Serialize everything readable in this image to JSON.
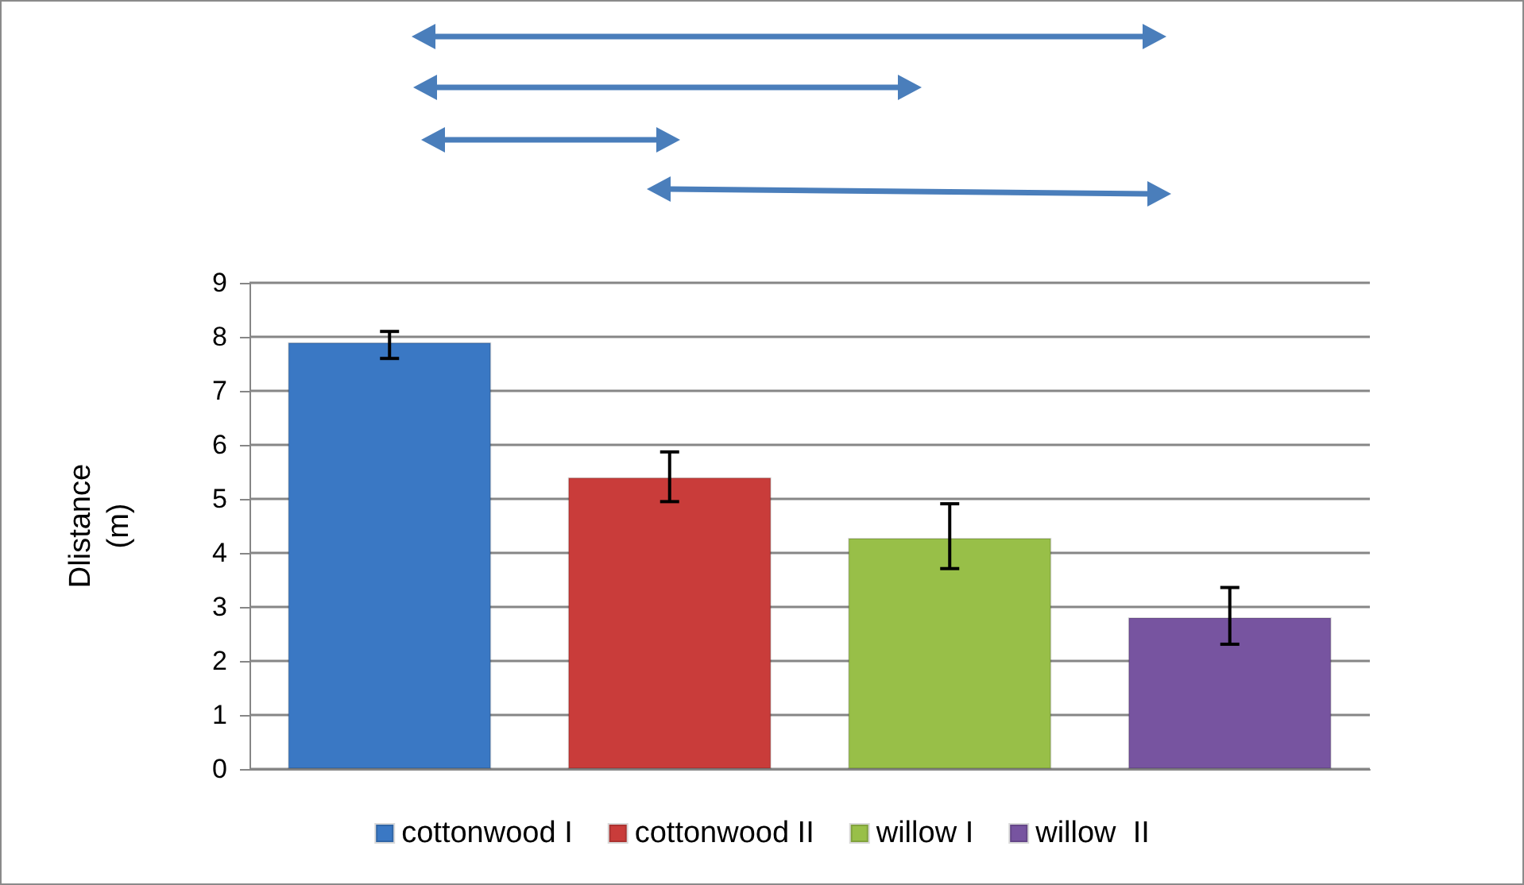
{
  "chart_data": {
    "type": "bar",
    "ylabel": "Dlistance\n(m)",
    "categories": [
      null,
      null,
      null,
      null
    ],
    "series": [
      {
        "name": "cottonwood I",
        "color": "#3a78c4",
        "values": [
          7.9,
          null,
          null,
          null
        ],
        "errors": [
          [
            7.6,
            8.1
          ],
          null,
          null,
          null
        ]
      },
      {
        "name": "cottonwood II",
        "color": "#c93c3a",
        "values": [
          null,
          5.4,
          null,
          null
        ],
        "errors": [
          null,
          [
            4.95,
            5.87
          ],
          null,
          null
        ]
      },
      {
        "name": "willow I",
        "color": "#98bf48",
        "values": [
          null,
          null,
          4.28,
          null
        ],
        "errors": [
          null,
          null,
          [
            3.71,
            4.91
          ],
          null
        ]
      },
      {
        "name": "willow  II",
        "color": "#7754a0",
        "values": [
          null,
          null,
          null,
          2.81
        ],
        "errors": [
          null,
          null,
          null,
          [
            2.31,
            3.36
          ]
        ]
      }
    ],
    "ylim": [
      0,
      9
    ],
    "yticks": [
      0,
      1,
      2,
      3,
      4,
      5,
      6,
      7,
      8,
      9
    ],
    "grid": "y",
    "legend": "bottom"
  }
}
